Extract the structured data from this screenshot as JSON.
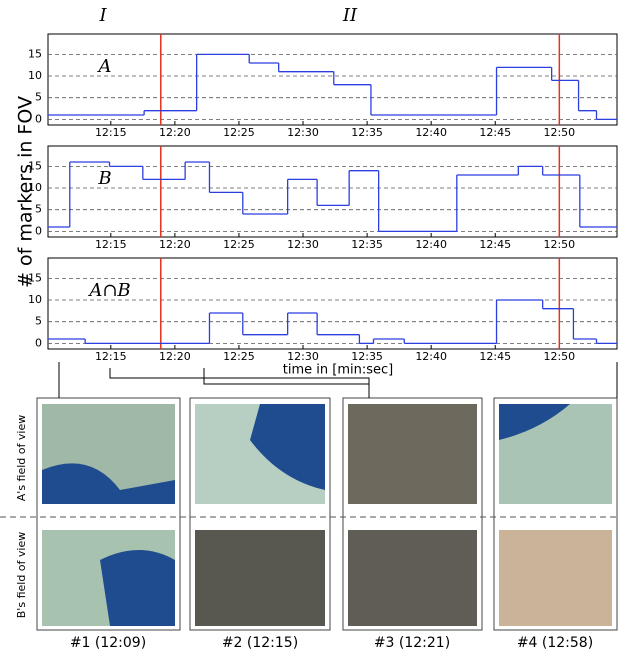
{
  "periods": [
    "I",
    "II"
  ],
  "y_label": "# of markers in FOV",
  "time_markers": {
    "color": "#e8301c",
    "x": [
      738.9,
      770.0
    ]
  },
  "chart_data": [
    {
      "type": "step",
      "label": "A",
      "color": "#2b3fe0",
      "x": [
        730.1,
        737.6,
        741.7,
        745.8,
        748.1,
        752.4,
        755.3,
        765.1,
        769.4,
        771.5,
        772.9
      ],
      "values": [
        1,
        2,
        15,
        13,
        11,
        8,
        1,
        12,
        9,
        2,
        0
      ],
      "xlim": [
        730.1,
        774.5
      ],
      "ylim": [
        -1.3,
        19.7
      ],
      "yticks": [
        0,
        5,
        10,
        15
      ],
      "grid": true,
      "xticks": [
        {
          "value": 735,
          "label": "12:15"
        },
        {
          "value": 740,
          "label": "12:20"
        },
        {
          "value": 745,
          "label": "12:25"
        },
        {
          "value": 750,
          "label": "12:30"
        },
        {
          "value": 755,
          "label": "12:35"
        },
        {
          "value": 760,
          "label": "12:40"
        },
        {
          "value": 765,
          "label": "12:45"
        },
        {
          "value": 770,
          "label": "12:50"
        }
      ]
    },
    {
      "type": "step",
      "label": "B",
      "color": "#2b3fe0",
      "x": [
        730.1,
        731.8,
        734.9,
        737.5,
        740.8,
        742.7,
        745.3,
        748.8,
        751.1,
        753.6,
        755.9,
        762.0,
        766.8,
        768.7,
        771.6
      ],
      "values": [
        1,
        16,
        15,
        12,
        16,
        9,
        4,
        12,
        6,
        14,
        0,
        13,
        15,
        13,
        1
      ],
      "xlim": [
        730.1,
        774.5
      ],
      "ylim": [
        -1.3,
        19.7
      ],
      "yticks": [
        0,
        5,
        10,
        15
      ],
      "grid": true,
      "xticks": [
        {
          "value": 735,
          "label": "12:15"
        },
        {
          "value": 740,
          "label": "12:20"
        },
        {
          "value": 745,
          "label": "12:25"
        },
        {
          "value": 750,
          "label": "12:30"
        },
        {
          "value": 755,
          "label": "12:35"
        },
        {
          "value": 760,
          "label": "12:40"
        },
        {
          "value": 765,
          "label": "12:45"
        },
        {
          "value": 770,
          "label": "12:50"
        }
      ]
    },
    {
      "type": "step",
      "label": "A∩B",
      "color": "#2b3fe0",
      "x_label": "time in [min:sec]",
      "x": [
        730.1,
        733.0,
        742.7,
        745.3,
        748.8,
        751.1,
        754.4,
        755.5,
        757.9,
        765.1,
        768.7,
        771.1,
        772.9
      ],
      "values": [
        1,
        0,
        7,
        2,
        7,
        2,
        0,
        1,
        0,
        10,
        8,
        1,
        0
      ],
      "xlim": [
        730.1,
        774.5
      ],
      "ylim": [
        -1.3,
        19.7
      ],
      "yticks": [
        0,
        5,
        10,
        15
      ],
      "grid": true,
      "xticks": [
        {
          "value": 735,
          "label": "12:15"
        },
        {
          "value": 740,
          "label": "12:20"
        },
        {
          "value": 745,
          "label": "12:25"
        },
        {
          "value": 750,
          "label": "12:30"
        },
        {
          "value": 755,
          "label": "12:35"
        },
        {
          "value": 760,
          "label": "12:40"
        },
        {
          "value": 765,
          "label": "12:45"
        },
        {
          "value": 770,
          "label": "12:50"
        }
      ]
    }
  ],
  "photos": {
    "row_labels": [
      "A's field of view",
      "B's field of view"
    ],
    "captions": [
      "#1 (12:09)",
      "#2 (12:15)",
      "#3 (12:21)",
      "#4 (12:58)"
    ]
  }
}
